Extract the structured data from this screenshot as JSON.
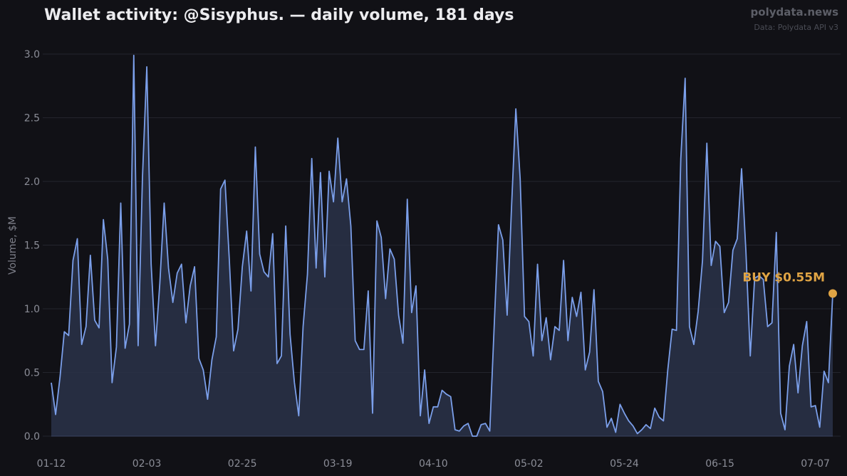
{
  "header": {
    "title": "Wallet activity: @Sisyphus. — daily volume, 181 days",
    "brand": "polydata.news",
    "source": "Data: Polydata API v3"
  },
  "colors": {
    "background": "#111116",
    "line": "#7b9fea",
    "fill": "#2a3249",
    "grid": "#24252d",
    "annotation": "#e0a444"
  },
  "chart_data": {
    "type": "area",
    "title": "Wallet activity: @Sisyphus. — daily volume, 181 days",
    "ylabel": "Volume, $M",
    "xlabel": "",
    "ylim": [
      0,
      3.0
    ],
    "y_ticks": [
      0.0,
      0.5,
      1.0,
      1.5,
      2.0,
      2.5,
      3.0
    ],
    "y_tick_labels": [
      "0.0",
      "0.5",
      "1.0",
      "1.5",
      "2.0",
      "2.5",
      "3.0"
    ],
    "x_tick_index": [
      0,
      22,
      44,
      66,
      88,
      110,
      132,
      154,
      176
    ],
    "x_tick_labels": [
      "01-12",
      "02-03",
      "02-25",
      "03-19",
      "04-10",
      "05-02",
      "05-24",
      "06-15",
      "07-07"
    ],
    "grid": true,
    "series": [
      {
        "values": [
          0.42,
          0.17,
          0.46,
          0.82,
          0.79,
          1.38,
          1.55,
          0.72,
          0.86,
          1.42,
          0.91,
          0.85,
          1.7,
          1.39,
          0.42,
          0.7,
          1.83,
          0.69,
          0.88,
          2.99,
          0.71,
          2.03,
          2.9,
          1.35,
          0.71,
          1.2,
          1.83,
          1.32,
          1.05,
          1.28,
          1.35,
          0.89,
          1.18,
          1.33,
          0.61,
          0.52,
          0.29,
          0.6,
          0.78,
          1.94,
          2.01,
          1.39,
          0.67,
          0.84,
          1.33,
          1.61,
          1.14,
          2.27,
          1.43,
          1.29,
          1.25,
          1.59,
          0.57,
          0.63,
          1.65,
          0.8,
          0.42,
          0.16,
          0.86,
          1.27,
          2.18,
          1.32,
          2.07,
          1.25,
          2.08,
          1.84,
          2.34,
          1.84,
          2.02,
          1.65,
          0.75,
          0.68,
          0.68,
          1.14,
          0.18,
          1.69,
          1.56,
          1.08,
          1.47,
          1.39,
          0.95,
          0.73,
          1.86,
          0.97,
          1.18,
          0.16,
          0.52,
          0.1,
          0.23,
          0.23,
          0.36,
          0.33,
          0.31,
          0.05,
          0.04,
          0.08,
          0.1,
          0.0,
          0.0,
          0.09,
          0.1,
          0.04,
          0.85,
          1.66,
          1.54,
          0.95,
          1.79,
          2.57,
          2.02,
          0.94,
          0.9,
          0.63,
          1.35,
          0.75,
          0.93,
          0.6,
          0.86,
          0.83,
          1.38,
          0.75,
          1.09,
          0.94,
          1.13,
          0.52,
          0.66,
          1.15,
          0.43,
          0.35,
          0.07,
          0.14,
          0.03,
          0.25,
          0.18,
          0.12,
          0.08,
          0.02,
          0.05,
          0.09,
          0.06,
          0.22,
          0.15,
          0.12,
          0.52,
          0.84,
          0.83,
          2.18,
          2.81,
          0.86,
          0.72,
          0.98,
          1.38,
          2.3,
          1.34,
          1.53,
          1.49,
          0.97,
          1.05,
          1.46,
          1.55,
          2.1,
          1.45,
          0.63,
          1.24,
          1.26,
          1.23,
          0.86,
          0.89,
          1.6,
          0.18,
          0.05,
          0.55,
          0.72,
          0.34,
          0.71,
          0.9,
          0.23,
          0.24,
          0.07,
          0.51,
          0.42,
          1.12
        ]
      }
    ],
    "annotations": [
      {
        "text": "BUY $0.55M",
        "index": 181,
        "y": 1.12
      }
    ]
  }
}
